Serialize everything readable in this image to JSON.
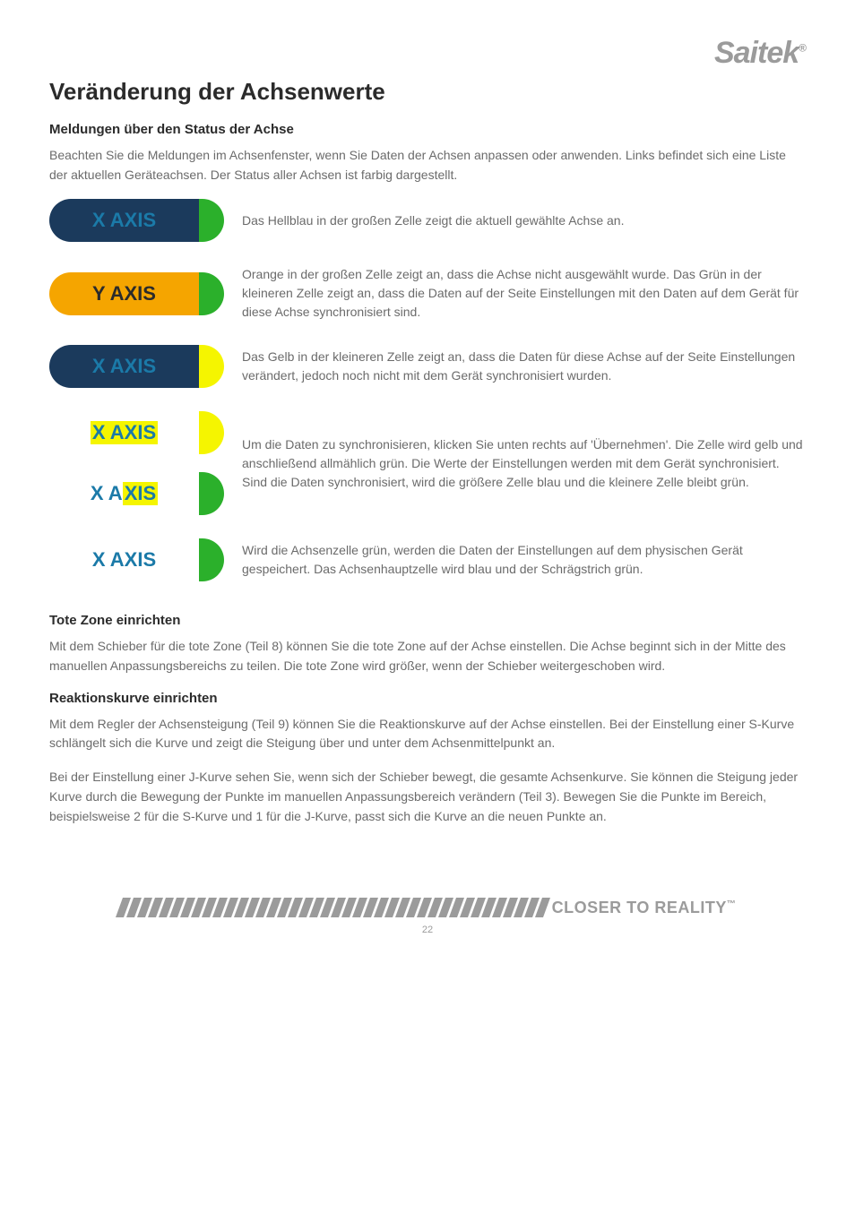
{
  "logo": {
    "text": "Saitek",
    "reg": "®"
  },
  "title": "Veränderung der Achsenwerte",
  "section1_heading": "Meldungen über den Status der Achse",
  "section1_intro": "Beachten Sie die Meldungen im Achsenfenster, wenn Sie Daten der Achsen anpassen oder anwenden. Links befindet sich eine Liste der aktuellen Geräteachsen. Der Status aller Achsen ist farbig dargestellt.",
  "colors": {
    "blue": "#1b3a5c",
    "orange": "#f5a500",
    "yellow": "#f5f500",
    "green": "#2bb02b",
    "highlight_yellow": "#f5f500",
    "text_blue_label": "#1b5a8f",
    "text_orange_label": "#2b2b2b"
  },
  "status_items": [
    {
      "label": "X AXIS",
      "main_bg": "#1b3a5c",
      "main_fg": "#1b7aa8",
      "slash_bg": "#2bb02b",
      "highlight_bg": null,
      "desc": "Das Hellblau in der großen Zelle zeigt die aktuell gewählte Achse an."
    },
    {
      "label": "Y AXIS",
      "main_bg": "#f5a500",
      "main_fg": "#2b2b2b",
      "slash_bg": "#2bb02b",
      "highlight_bg": null,
      "desc": "Orange in der großen Zelle zeigt an, dass die Achse nicht ausgewählt wurde. Das Grün in der kleineren Zelle zeigt an, dass die Daten auf der Seite Einstellungen mit den Daten auf dem Gerät für diese Achse synchronisiert sind."
    },
    {
      "label": "X AXIS",
      "main_bg": "#1b3a5c",
      "main_fg": "#1b7aa8",
      "slash_bg": "#f5f500",
      "highlight_bg": null,
      "desc": "Das Gelb in der kleineren Zelle zeigt an, dass die Daten für diese Achse auf der Seite Einstellungen verändert, jedoch noch nicht mit dem Gerät synchronisiert wurden."
    }
  ],
  "pair_item": {
    "top": {
      "label": "X AXIS",
      "main_bg": "#ffffff",
      "main_fg": "#1b7aa8",
      "slash_bg": "#f5f500",
      "highlight_bg": "#f5f500"
    },
    "bottom": {
      "prefix": "X A",
      "suffix": "XIS",
      "main_bg": "#ffffff",
      "main_fg": "#1b7aa8",
      "slash_bg": "#2bb02b",
      "highlight_bg": "#f5f500"
    },
    "desc": "Um die Daten zu synchronisieren, klicken Sie unten rechts auf 'Übernehmen'. Die Zelle wird gelb und anschließend allmählich grün. Die Werte der Einstellungen werden mit dem Gerät synchronisiert. Sind die Daten synchronisiert, wird die größere Zelle blau und die kleinere Zelle bleibt grün."
  },
  "final_item": {
    "label": "X AXIS",
    "main_bg": "#ffffff",
    "main_fg": "#1b7aa8",
    "slash_bg": "#2bb02b",
    "highlight_bg": null,
    "desc": "Wird die Achsenzelle grün, werden die Daten der Einstellungen auf dem physischen Gerät gespeichert. Das Achsenhauptzelle wird blau und der Schrägstrich grün."
  },
  "section2_heading": "Tote Zone einrichten",
  "section2_text": "Mit dem Schieber für die tote Zone (Teil 8) können Sie die tote Zone auf der Achse einstellen. Die Achse beginnt sich in der Mitte des manuellen Anpassungsbereichs zu teilen. Die tote Zone wird größer, wenn der Schieber weitergeschoben wird.",
  "section3_heading": "Reaktionskurve einrichten",
  "section3_p1": "Mit dem Regler der Achsensteigung (Teil 9) können Sie die Reaktionskurve auf der Achse einstellen. Bei der Einstellung einer S-Kurve schlängelt sich die Kurve und zeigt die Steigung über und unter dem Achsenmittelpunkt an.",
  "section3_p2": "Bei der Einstellung einer J-Kurve sehen Sie, wenn sich der Schieber bewegt, die gesamte Achsenkurve. Sie können die Steigung jeder Kurve durch die Bewegung der Punkte im manuellen Anpassungsbereich verändern (Teil 3). Bewegen Sie die Punkte im Bereich, beispielsweise 2 für die S-Kurve und 1 für die J-Kurve, passt sich die Kurve an die neuen Punkte an.",
  "footer": {
    "tagline": "CLOSER TO REALITY",
    "tm": "™",
    "stripe_count": 40,
    "page_number": "22"
  }
}
